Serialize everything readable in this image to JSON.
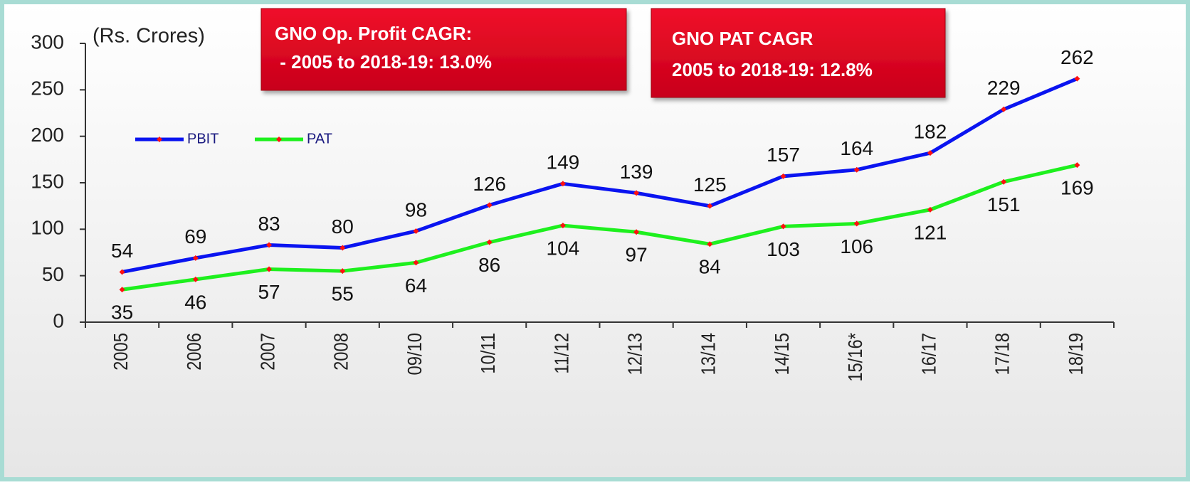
{
  "chart_data": {
    "type": "line",
    "unit_label": "(Rs. Crores)",
    "categories": [
      "2005",
      "2006",
      "2007",
      "2008",
      "09/10",
      "10/11",
      "11/12",
      "12/13",
      "13/14",
      "14/15",
      "15/16*",
      "16/17",
      "17/18",
      "18/19"
    ],
    "series": [
      {
        "name": "PBIT",
        "color": "#0a14f0",
        "values": [
          54,
          69,
          83,
          80,
          98,
          126,
          149,
          139,
          125,
          157,
          164,
          182,
          229,
          262
        ]
      },
      {
        "name": "PAT",
        "color": "#1ef01e",
        "values": [
          35,
          46,
          57,
          55,
          64,
          86,
          104,
          97,
          84,
          103,
          106,
          121,
          151,
          169
        ]
      }
    ],
    "marker_color": "#ff1010",
    "ylim": [
      0,
      300
    ],
    "yticks": [
      0,
      50,
      100,
      150,
      200,
      250,
      300
    ],
    "legend": "upper left",
    "annotations": [
      {
        "lines": [
          "GNO Op. Profit CAGR:",
          " - 2005 to 2018-19: 13.0%"
        ]
      },
      {
        "lines": [
          "GNO PAT CAGR",
          "2005 to 2018-19: 12.8%"
        ]
      }
    ]
  }
}
